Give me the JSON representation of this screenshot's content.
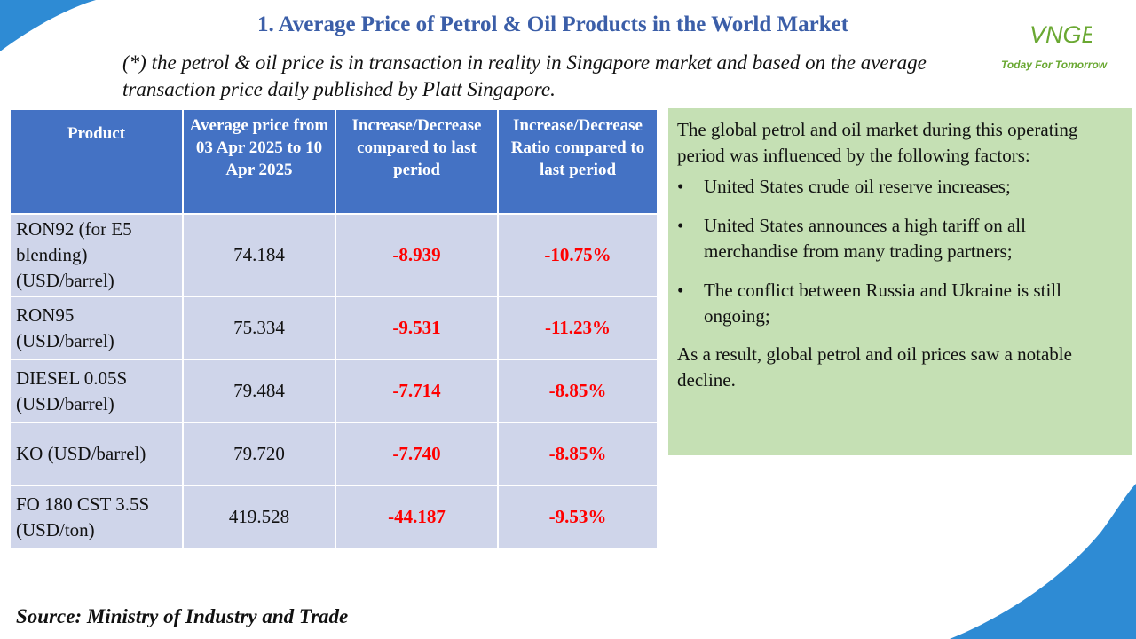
{
  "title": "1. Average Price of Petrol & Oil Products in the World Market",
  "note": "(*) the petrol & oil price is in transaction in reality in Singapore market and based on the average transaction price daily published by Platt Singapore.",
  "logo": {
    "brand": "VNGE",
    "tagline": "Today For Tomorrow",
    "color": "#6aa832"
  },
  "table": {
    "headers": [
      "Product",
      "Average price from 03 Apr 2025 to 10 Apr 2025",
      "Increase/Decrease compared to last period",
      "Increase/Decrease Ratio compared to last period"
    ],
    "rows": [
      {
        "product": "RON92 (for E5 blending) (USD/barrel)",
        "avg_price": "74.184",
        "change": "-8.939",
        "ratio": "-10.75%"
      },
      {
        "product": "RON95 (USD/barrel)",
        "avg_price": "75.334",
        "change": "-9.531",
        "ratio": "-11.23%"
      },
      {
        "product": "DIESEL 0.05S (USD/barrel)",
        "avg_price": "79.484",
        "change": "-7.714",
        "ratio": "-8.85%"
      },
      {
        "product": "KO (USD/barrel)",
        "avg_price": "79.720",
        "change": "-7.740",
        "ratio": "-8.85%"
      },
      {
        "product": "FO 180 CST 3.5S (USD/ton)",
        "avg_price": "419.528",
        "change": "-44.187",
        "ratio": "-9.53%"
      }
    ]
  },
  "factors": {
    "intro": "The global petrol and oil market during this operating period was influenced by the following factors:",
    "items": [
      "United States crude oil reserve increases;",
      "United States announces a high tariff on all merchandise from many trading partners;",
      "The conflict between Russia and Ukraine is still ongoing;"
    ],
    "conclusion": "As a result, global petrol and oil prices saw a notable decline."
  },
  "source": "Source: Ministry of Industry and Trade",
  "colors": {
    "title": "#3b5ea8",
    "header_bg": "#4472c4",
    "row_bg": "#cfd5ea",
    "negative": "#ff0000",
    "factors_bg": "#c5e0b4",
    "decor_blue": "#2e8bd4"
  }
}
